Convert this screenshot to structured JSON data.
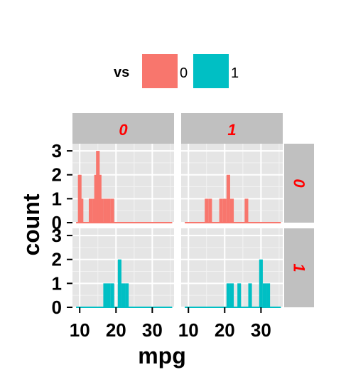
{
  "chart_data": {
    "type": "bar",
    "title": "",
    "xlabel": "mpg",
    "ylabel": "count",
    "xlim": [
      8,
      36
    ],
    "ylim": [
      0,
      3.3
    ],
    "x_ticks": [
      "10",
      "20",
      "30"
    ],
    "y_ticks": [
      "0",
      "1",
      "2",
      "3"
    ],
    "legend": {
      "title": "vs",
      "position": "top",
      "entries": [
        {
          "label": "0",
          "color": "#F8766D"
        },
        {
          "label": "1",
          "color": "#00BFC4"
        }
      ]
    },
    "facet_cols": [
      "0",
      "1"
    ],
    "facet_rows": [
      "0",
      "1"
    ],
    "strip_text_color": "#FF0000",
    "strip_bg_color": "#C0C0C0",
    "panel_bg_color": "#E5E5E5",
    "bin_width": 1,
    "panels": [
      {
        "row": "0",
        "col": "0",
        "color": "#F8766D",
        "x": [
          10,
          10.5,
          13,
          14,
          14.5,
          15,
          15.5,
          16,
          17,
          18,
          19
        ],
        "values": [
          2,
          1,
          1,
          1,
          2,
          3,
          2,
          1,
          1,
          1,
          1
        ]
      },
      {
        "row": "0",
        "col": "1",
        "color": "#F8766D",
        "x": [
          15,
          16,
          19,
          20,
          21,
          22,
          26
        ],
        "values": [
          1,
          1,
          1,
          1,
          2,
          1,
          1
        ]
      },
      {
        "row": "1",
        "col": "0",
        "color": "#00BFC4",
        "x": [
          17,
          18,
          19,
          21,
          22,
          23
        ],
        "values": [
          1,
          1,
          1,
          2,
          1,
          1
        ]
      },
      {
        "row": "1",
        "col": "1",
        "color": "#00BFC4",
        "x": [
          21,
          22,
          24,
          27,
          30,
          31,
          32
        ],
        "values": [
          1,
          1,
          1,
          1,
          2,
          1,
          1
        ]
      }
    ]
  }
}
